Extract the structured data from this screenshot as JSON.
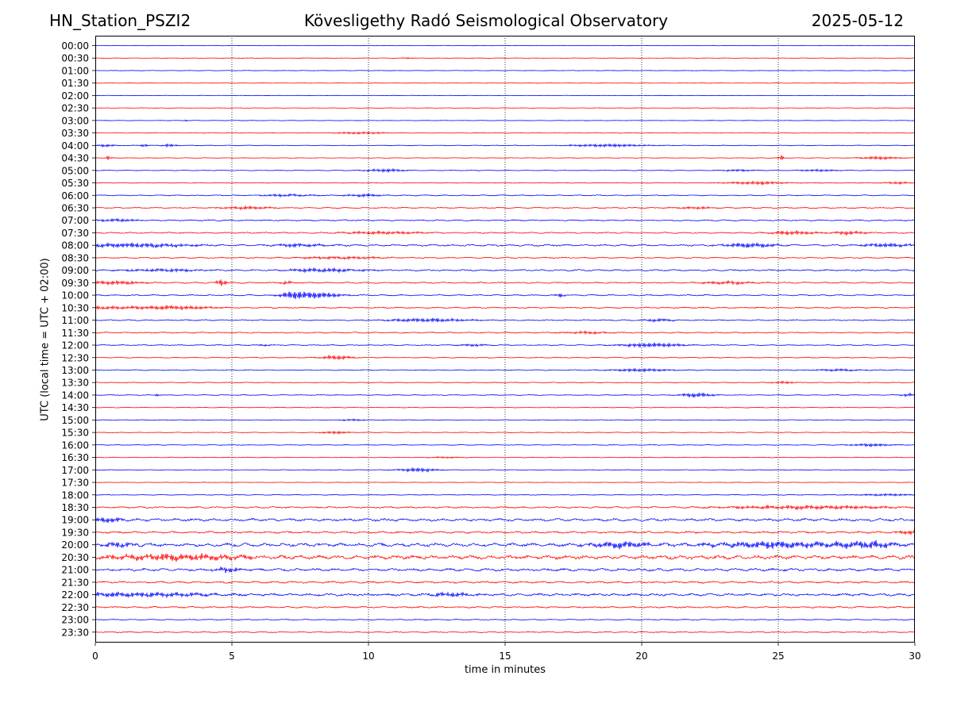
{
  "header": {
    "station": "HN_Station_PSZI2",
    "observatory": "Kövesligethy Radó Seismological Observatory",
    "date": "2025-05-12"
  },
  "chart_data": {
    "type": "line",
    "title": "Kövesligethy Radó Seismological Observatory",
    "xlabel": "time in minutes",
    "ylabel": "UTC (local time = UTC + 02:00)",
    "xlim": [
      0,
      30
    ],
    "xticks": [
      0,
      5,
      10,
      15,
      20,
      25,
      30
    ],
    "grid": "vertical dotted at 5, 10, 15, 20, 25",
    "colors": {
      "even_rows": "#0000ff",
      "odd_rows": "#ff0000"
    },
    "series": [
      {
        "name": "00:00",
        "noise": 0.3,
        "events": []
      },
      {
        "name": "00:30",
        "noise": 0.3,
        "events": [
          {
            "t": 11.5,
            "amp": 0.8,
            "dur": 0.3
          }
        ]
      },
      {
        "name": "01:00",
        "noise": 0.3,
        "events": []
      },
      {
        "name": "01:30",
        "noise": 0.3,
        "events": []
      },
      {
        "name": "02:00",
        "noise": 0.3,
        "events": []
      },
      {
        "name": "02:30",
        "noise": 0.3,
        "events": []
      },
      {
        "name": "03:00",
        "noise": 0.3,
        "events": [
          {
            "t": 3.3,
            "amp": 1.2,
            "dur": 0.1
          }
        ]
      },
      {
        "name": "03:30",
        "noise": 0.4,
        "events": [
          {
            "t": 9.7,
            "amp": 1.5,
            "dur": 1.0
          }
        ]
      },
      {
        "name": "04:00",
        "noise": 0.5,
        "events": [
          {
            "t": 0.4,
            "amp": 2.0,
            "dur": 0.3
          },
          {
            "t": 1.8,
            "amp": 3.0,
            "dur": 0.1
          },
          {
            "t": 2.7,
            "amp": 2.0,
            "dur": 0.3
          },
          {
            "t": 18.8,
            "amp": 2.0,
            "dur": 1.5
          }
        ]
      },
      {
        "name": "04:30",
        "noise": 0.4,
        "events": [
          {
            "t": 0.5,
            "amp": 3.0,
            "dur": 0.1
          },
          {
            "t": 25.1,
            "amp": 4.0,
            "dur": 0.1
          },
          {
            "t": 28.7,
            "amp": 2.0,
            "dur": 0.8
          }
        ]
      },
      {
        "name": "05:00",
        "noise": 0.5,
        "events": [
          {
            "t": 10.6,
            "amp": 2.0,
            "dur": 0.8
          },
          {
            "t": 23.5,
            "amp": 1.5,
            "dur": 0.6
          },
          {
            "t": 26.5,
            "amp": 1.5,
            "dur": 0.8
          }
        ]
      },
      {
        "name": "05:30",
        "noise": 0.5,
        "events": [
          {
            "t": 24.2,
            "amp": 2.0,
            "dur": 1.2
          },
          {
            "t": 29.4,
            "amp": 1.5,
            "dur": 0.5
          }
        ]
      },
      {
        "name": "06:00",
        "noise": 0.8,
        "events": [
          {
            "t": 7.0,
            "amp": 1.5,
            "dur": 1.0
          },
          {
            "t": 9.8,
            "amp": 2.0,
            "dur": 0.7
          }
        ]
      },
      {
        "name": "06:30",
        "noise": 0.8,
        "events": [
          {
            "t": 5.6,
            "amp": 2.0,
            "dur": 1.0
          },
          {
            "t": 21.9,
            "amp": 1.5,
            "dur": 0.8
          }
        ]
      },
      {
        "name": "07:00",
        "noise": 1.0,
        "events": [
          {
            "t": 0.8,
            "amp": 2.0,
            "dur": 0.8
          }
        ]
      },
      {
        "name": "07:30",
        "noise": 1.0,
        "events": [
          {
            "t": 10.5,
            "amp": 2.0,
            "dur": 1.5
          },
          {
            "t": 25.5,
            "amp": 2.5,
            "dur": 0.8
          },
          {
            "t": 27.6,
            "amp": 2.5,
            "dur": 0.6
          }
        ]
      },
      {
        "name": "08:00",
        "noise": 1.4,
        "events": [
          {
            "t": 1.5,
            "amp": 3.0,
            "dur": 2.0
          },
          {
            "t": 7.5,
            "amp": 2.0,
            "dur": 1.0
          },
          {
            "t": 24.0,
            "amp": 3.0,
            "dur": 1.0
          },
          {
            "t": 29.0,
            "amp": 2.5,
            "dur": 1.0
          }
        ]
      },
      {
        "name": "08:30",
        "noise": 1.0,
        "events": [
          {
            "t": 9.0,
            "amp": 1.5,
            "dur": 2.0
          }
        ]
      },
      {
        "name": "09:00",
        "noise": 1.2,
        "events": [
          {
            "t": 2.5,
            "amp": 2.0,
            "dur": 1.5
          },
          {
            "t": 8.3,
            "amp": 2.5,
            "dur": 1.5
          }
        ]
      },
      {
        "name": "09:30",
        "noise": 1.0,
        "events": [
          {
            "t": 0.7,
            "amp": 2.5,
            "dur": 1.0
          },
          {
            "t": 4.6,
            "amp": 4.5,
            "dur": 0.2
          },
          {
            "t": 7.0,
            "amp": 2.0,
            "dur": 0.3
          },
          {
            "t": 23.2,
            "amp": 2.0,
            "dur": 1.0
          }
        ]
      },
      {
        "name": "10:00",
        "noise": 1.0,
        "events": [
          {
            "t": 7.2,
            "amp": 3.0,
            "dur": 0.4
          },
          {
            "t": 8.0,
            "amp": 4.5,
            "dur": 1.0
          },
          {
            "t": 17.0,
            "amp": 2.5,
            "dur": 0.2
          }
        ]
      },
      {
        "name": "10:30",
        "noise": 1.0,
        "events": [
          {
            "t": 0.7,
            "amp": 2.0,
            "dur": 1.5
          },
          {
            "t": 3.2,
            "amp": 2.5,
            "dur": 1.2
          }
        ]
      },
      {
        "name": "11:00",
        "noise": 0.9,
        "events": [
          {
            "t": 12.2,
            "amp": 2.5,
            "dur": 1.5
          },
          {
            "t": 20.6,
            "amp": 2.0,
            "dur": 0.6
          }
        ]
      },
      {
        "name": "11:30",
        "noise": 0.9,
        "events": [
          {
            "t": 18.0,
            "amp": 1.5,
            "dur": 1.0
          }
        ]
      },
      {
        "name": "12:00",
        "noise": 0.8,
        "events": [
          {
            "t": 6.2,
            "amp": 1.5,
            "dur": 0.3
          },
          {
            "t": 13.8,
            "amp": 1.5,
            "dur": 0.6
          },
          {
            "t": 20.4,
            "amp": 3.0,
            "dur": 1.2
          }
        ]
      },
      {
        "name": "12:30",
        "noise": 0.7,
        "events": [
          {
            "t": 8.8,
            "amp": 3.0,
            "dur": 0.6
          }
        ]
      },
      {
        "name": "13:00",
        "noise": 0.7,
        "events": [
          {
            "t": 20.0,
            "amp": 2.0,
            "dur": 1.2
          },
          {
            "t": 27.2,
            "amp": 1.5,
            "dur": 1.0
          }
        ]
      },
      {
        "name": "13:30",
        "noise": 0.6,
        "events": [
          {
            "t": 25.2,
            "amp": 1.5,
            "dur": 0.5
          }
        ]
      },
      {
        "name": "14:00",
        "noise": 0.6,
        "events": [
          {
            "t": 2.3,
            "amp": 2.0,
            "dur": 0.1
          },
          {
            "t": 22.0,
            "amp": 3.0,
            "dur": 0.6
          },
          {
            "t": 29.8,
            "amp": 2.0,
            "dur": 0.3
          }
        ]
      },
      {
        "name": "14:30",
        "noise": 0.5,
        "events": []
      },
      {
        "name": "15:00",
        "noise": 0.5,
        "events": [
          {
            "t": 9.5,
            "amp": 1.2,
            "dur": 0.6
          }
        ]
      },
      {
        "name": "15:30",
        "noise": 0.5,
        "events": [
          {
            "t": 8.8,
            "amp": 2.0,
            "dur": 0.5
          }
        ]
      },
      {
        "name": "16:00",
        "noise": 0.5,
        "events": [
          {
            "t": 28.4,
            "amp": 2.0,
            "dur": 0.8
          }
        ]
      },
      {
        "name": "16:30",
        "noise": 0.5,
        "events": [
          {
            "t": 12.8,
            "amp": 1.0,
            "dur": 0.6
          }
        ]
      },
      {
        "name": "17:00",
        "noise": 0.5,
        "events": [
          {
            "t": 11.8,
            "amp": 2.5,
            "dur": 0.8
          }
        ]
      },
      {
        "name": "17:30",
        "noise": 0.3,
        "events": []
      },
      {
        "name": "18:00",
        "noise": 0.5,
        "events": [
          {
            "t": 29.0,
            "amp": 1.5,
            "dur": 1.2
          }
        ]
      },
      {
        "name": "18:30",
        "noise": 1.3,
        "events": [
          {
            "t": 26.0,
            "amp": 2.5,
            "dur": 3.0
          }
        ]
      },
      {
        "name": "19:00",
        "noise": 2.2,
        "events": [
          {
            "t": 0.5,
            "amp": 3.5,
            "dur": 0.5
          }
        ]
      },
      {
        "name": "19:30",
        "noise": 1.6,
        "events": [
          {
            "t": 29.8,
            "amp": 2.5,
            "dur": 0.5
          }
        ]
      },
      {
        "name": "20:00",
        "noise": 2.8,
        "events": [
          {
            "t": 0.8,
            "amp": 3.0,
            "dur": 0.6
          },
          {
            "t": 19.2,
            "amp": 4.5,
            "dur": 1.0
          },
          {
            "t": 25.0,
            "amp": 4.0,
            "dur": 2.5
          },
          {
            "t": 28.3,
            "amp": 4.0,
            "dur": 1.0
          }
        ]
      },
      {
        "name": "20:30",
        "noise": 3.0,
        "events": [
          {
            "t": 3.0,
            "amp": 4.0,
            "dur": 2.5
          }
        ]
      },
      {
        "name": "21:00",
        "noise": 2.2,
        "events": [
          {
            "t": 4.8,
            "amp": 3.5,
            "dur": 0.5
          }
        ]
      },
      {
        "name": "21:30",
        "noise": 1.6,
        "events": []
      },
      {
        "name": "22:00",
        "noise": 2.0,
        "events": [
          {
            "t": 1.5,
            "amp": 3.0,
            "dur": 3.0
          },
          {
            "t": 13.0,
            "amp": 2.5,
            "dur": 0.8
          }
        ]
      },
      {
        "name": "22:30",
        "noise": 1.2,
        "events": []
      },
      {
        "name": "23:00",
        "noise": 0.8,
        "events": []
      },
      {
        "name": "23:30",
        "noise": 0.9,
        "events": []
      }
    ]
  }
}
